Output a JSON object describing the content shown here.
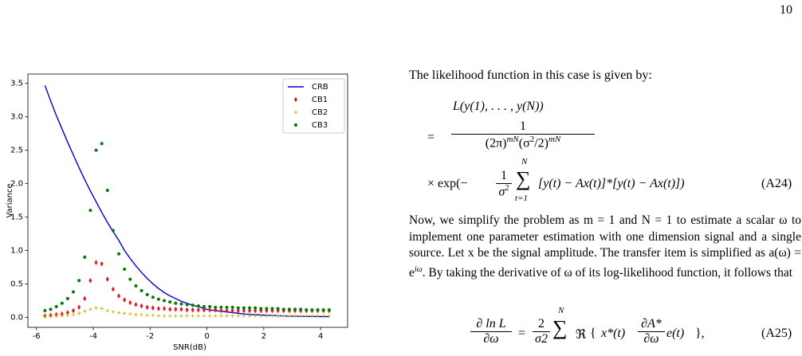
{
  "page_number": "10",
  "chart_data": {
    "type": "scatter",
    "x_label": "SNR(dB)",
    "y_label": "Variance",
    "x": [
      -5.7,
      -5.5,
      -5.3,
      -5.1,
      -4.9,
      -4.7,
      -4.5,
      -4.3,
      -4.1,
      -3.9,
      -3.7,
      -3.5,
      -3.3,
      -3.1,
      -2.9,
      -2.7,
      -2.5,
      -2.3,
      -2.1,
      -1.9,
      -1.7,
      -1.5,
      -1.3,
      -1.1,
      -0.9,
      -0.7,
      -0.5,
      -0.3,
      -0.1,
      0.1,
      0.3,
      0.5,
      0.7,
      0.9,
      1.1,
      1.3,
      1.5,
      1.7,
      1.9,
      2.1,
      2.3,
      2.5,
      2.7,
      2.9,
      3.1,
      3.3,
      3.5,
      3.7,
      3.9,
      4.1,
      4.3
    ],
    "series": [
      {
        "name": "CRB",
        "color": "#0000cc",
        "marker": "line",
        "values": [
          3.47,
          3.24,
          3.02,
          2.82,
          2.62,
          2.43,
          2.24,
          2.06,
          1.89,
          1.73,
          1.57,
          1.42,
          1.28,
          1.15,
          1.0,
          0.88,
          0.77,
          0.67,
          0.58,
          0.5,
          0.43,
          0.37,
          0.32,
          0.28,
          0.24,
          0.21,
          0.18,
          0.16,
          0.13,
          0.11,
          0.1,
          0.09,
          0.08,
          0.07,
          0.06,
          0.05,
          0.045,
          0.04,
          0.035,
          0.03,
          0.027,
          0.024,
          0.021,
          0.018,
          0.016,
          0.015,
          0.014,
          0.013,
          0.012,
          0.011,
          0.01
        ]
      },
      {
        "name": "CB1",
        "color": "#e8141c",
        "marker": "diamond",
        "values": [
          0.02,
          0.03,
          0.04,
          0.05,
          0.07,
          0.1,
          0.15,
          0.28,
          0.55,
          0.82,
          0.8,
          0.57,
          0.42,
          0.32,
          0.26,
          0.22,
          0.19,
          0.17,
          0.15,
          0.14,
          0.13,
          0.13,
          0.12,
          0.12,
          0.12,
          0.11,
          0.11,
          0.11,
          0.11,
          0.11,
          0.11,
          0.1,
          0.1,
          0.1,
          0.1,
          0.1,
          0.1,
          0.1,
          0.1,
          0.1,
          0.1,
          0.1,
          0.1,
          0.1,
          0.1,
          0.1,
          0.1,
          0.1,
          0.1,
          0.1,
          0.1
        ]
      },
      {
        "name": "CB2",
        "color": "#c9b200",
        "marker": "plus",
        "values": [
          0.01,
          0.01,
          0.02,
          0.02,
          0.03,
          0.04,
          0.06,
          0.09,
          0.12,
          0.14,
          0.13,
          0.1,
          0.08,
          0.07,
          0.06,
          0.05,
          0.04,
          0.04,
          0.03,
          0.03,
          0.02,
          0.02,
          0.02,
          0.02,
          0.02,
          0.02,
          0.02,
          0.02,
          0.02,
          0.02,
          0.02,
          0.02,
          0.02,
          0.02,
          0.02,
          0.02,
          0.02,
          0.02,
          0.02,
          0.02,
          0.02,
          0.02,
          0.02,
          0.02,
          0.02,
          0.02,
          0.02,
          0.02,
          0.02,
          0.02,
          0.02
        ]
      },
      {
        "name": "CB3",
        "color": "#007a00",
        "marker": "circle",
        "values": [
          0.1,
          0.12,
          0.16,
          0.21,
          0.28,
          0.38,
          0.55,
          0.9,
          1.6,
          2.5,
          2.6,
          1.9,
          1.3,
          0.95,
          0.72,
          0.57,
          0.47,
          0.4,
          0.34,
          0.3,
          0.27,
          0.25,
          0.23,
          0.21,
          0.2,
          0.19,
          0.18,
          0.17,
          0.16,
          0.16,
          0.15,
          0.15,
          0.15,
          0.15,
          0.14,
          0.14,
          0.14,
          0.14,
          0.13,
          0.13,
          0.13,
          0.13,
          0.12,
          0.12,
          0.12,
          0.12,
          0.11,
          0.11,
          0.11,
          0.11,
          0.11
        ]
      }
    ],
    "xlim": [
      -6.3,
      4.95
    ],
    "xticks": [
      -6,
      -4,
      -2,
      0,
      2,
      4
    ],
    "ylim": [
      -0.15,
      3.64
    ],
    "yticks": [
      {
        "value": 0,
        "label": "0.0"
      },
      0.5,
      {
        "value": 1,
        "label": "1.0"
      },
      1.5,
      {
        "value": 2,
        "label": "2.0"
      },
      2.5,
      {
        "value": 3,
        "label": "3.0"
      },
      3.5
    ],
    "legend": "upper right"
  },
  "text": {
    "intro": "The likelihood function in this case is given by:",
    "eq_a24": {
      "lhs": "L(y(1), . . . , y(N))",
      "eq": "=",
      "num": "1",
      "den": [
        "(2π)",
        "mN",
        "(σ",
        "2",
        "/2)",
        "mN"
      ],
      "times": "×  exp(−",
      "frac_num": "1",
      "frac_den": "σ",
      "frac_den_sup": "2",
      "sum_top": "N",
      "sum": "∑",
      "sum_bottom": "t=1",
      "body": "[y(t) − Ax(t)]*[y(t) − Ax(t)])",
      "tag": "(A24)"
    },
    "paragraph": [
      "Now, we simplify the problem as m = 1 and N = 1 to estimate a scalar ω to implement one parameter estimation with one dimension signal and a single source. Let x be the signal amplitude. The transfer item is simplified as a(ω) = e",
      "iω",
      ". By taking the derivative of ω of its log-likelihood function, it follows that"
    ],
    "eq_a25": {
      "lhs_num": "∂ ln L",
      "lhs_den": "∂ω",
      "eq": "=",
      "c_num": "2",
      "c_den": "σ2",
      "sum_top": "N",
      "sum": "∑",
      "re": "ℜ",
      "open": "{",
      "x": "x*(t)",
      "d_num": "∂A*",
      "d_den": "∂ω",
      "e": "e(t)",
      "close": "},",
      "tag": "(A25)"
    }
  }
}
